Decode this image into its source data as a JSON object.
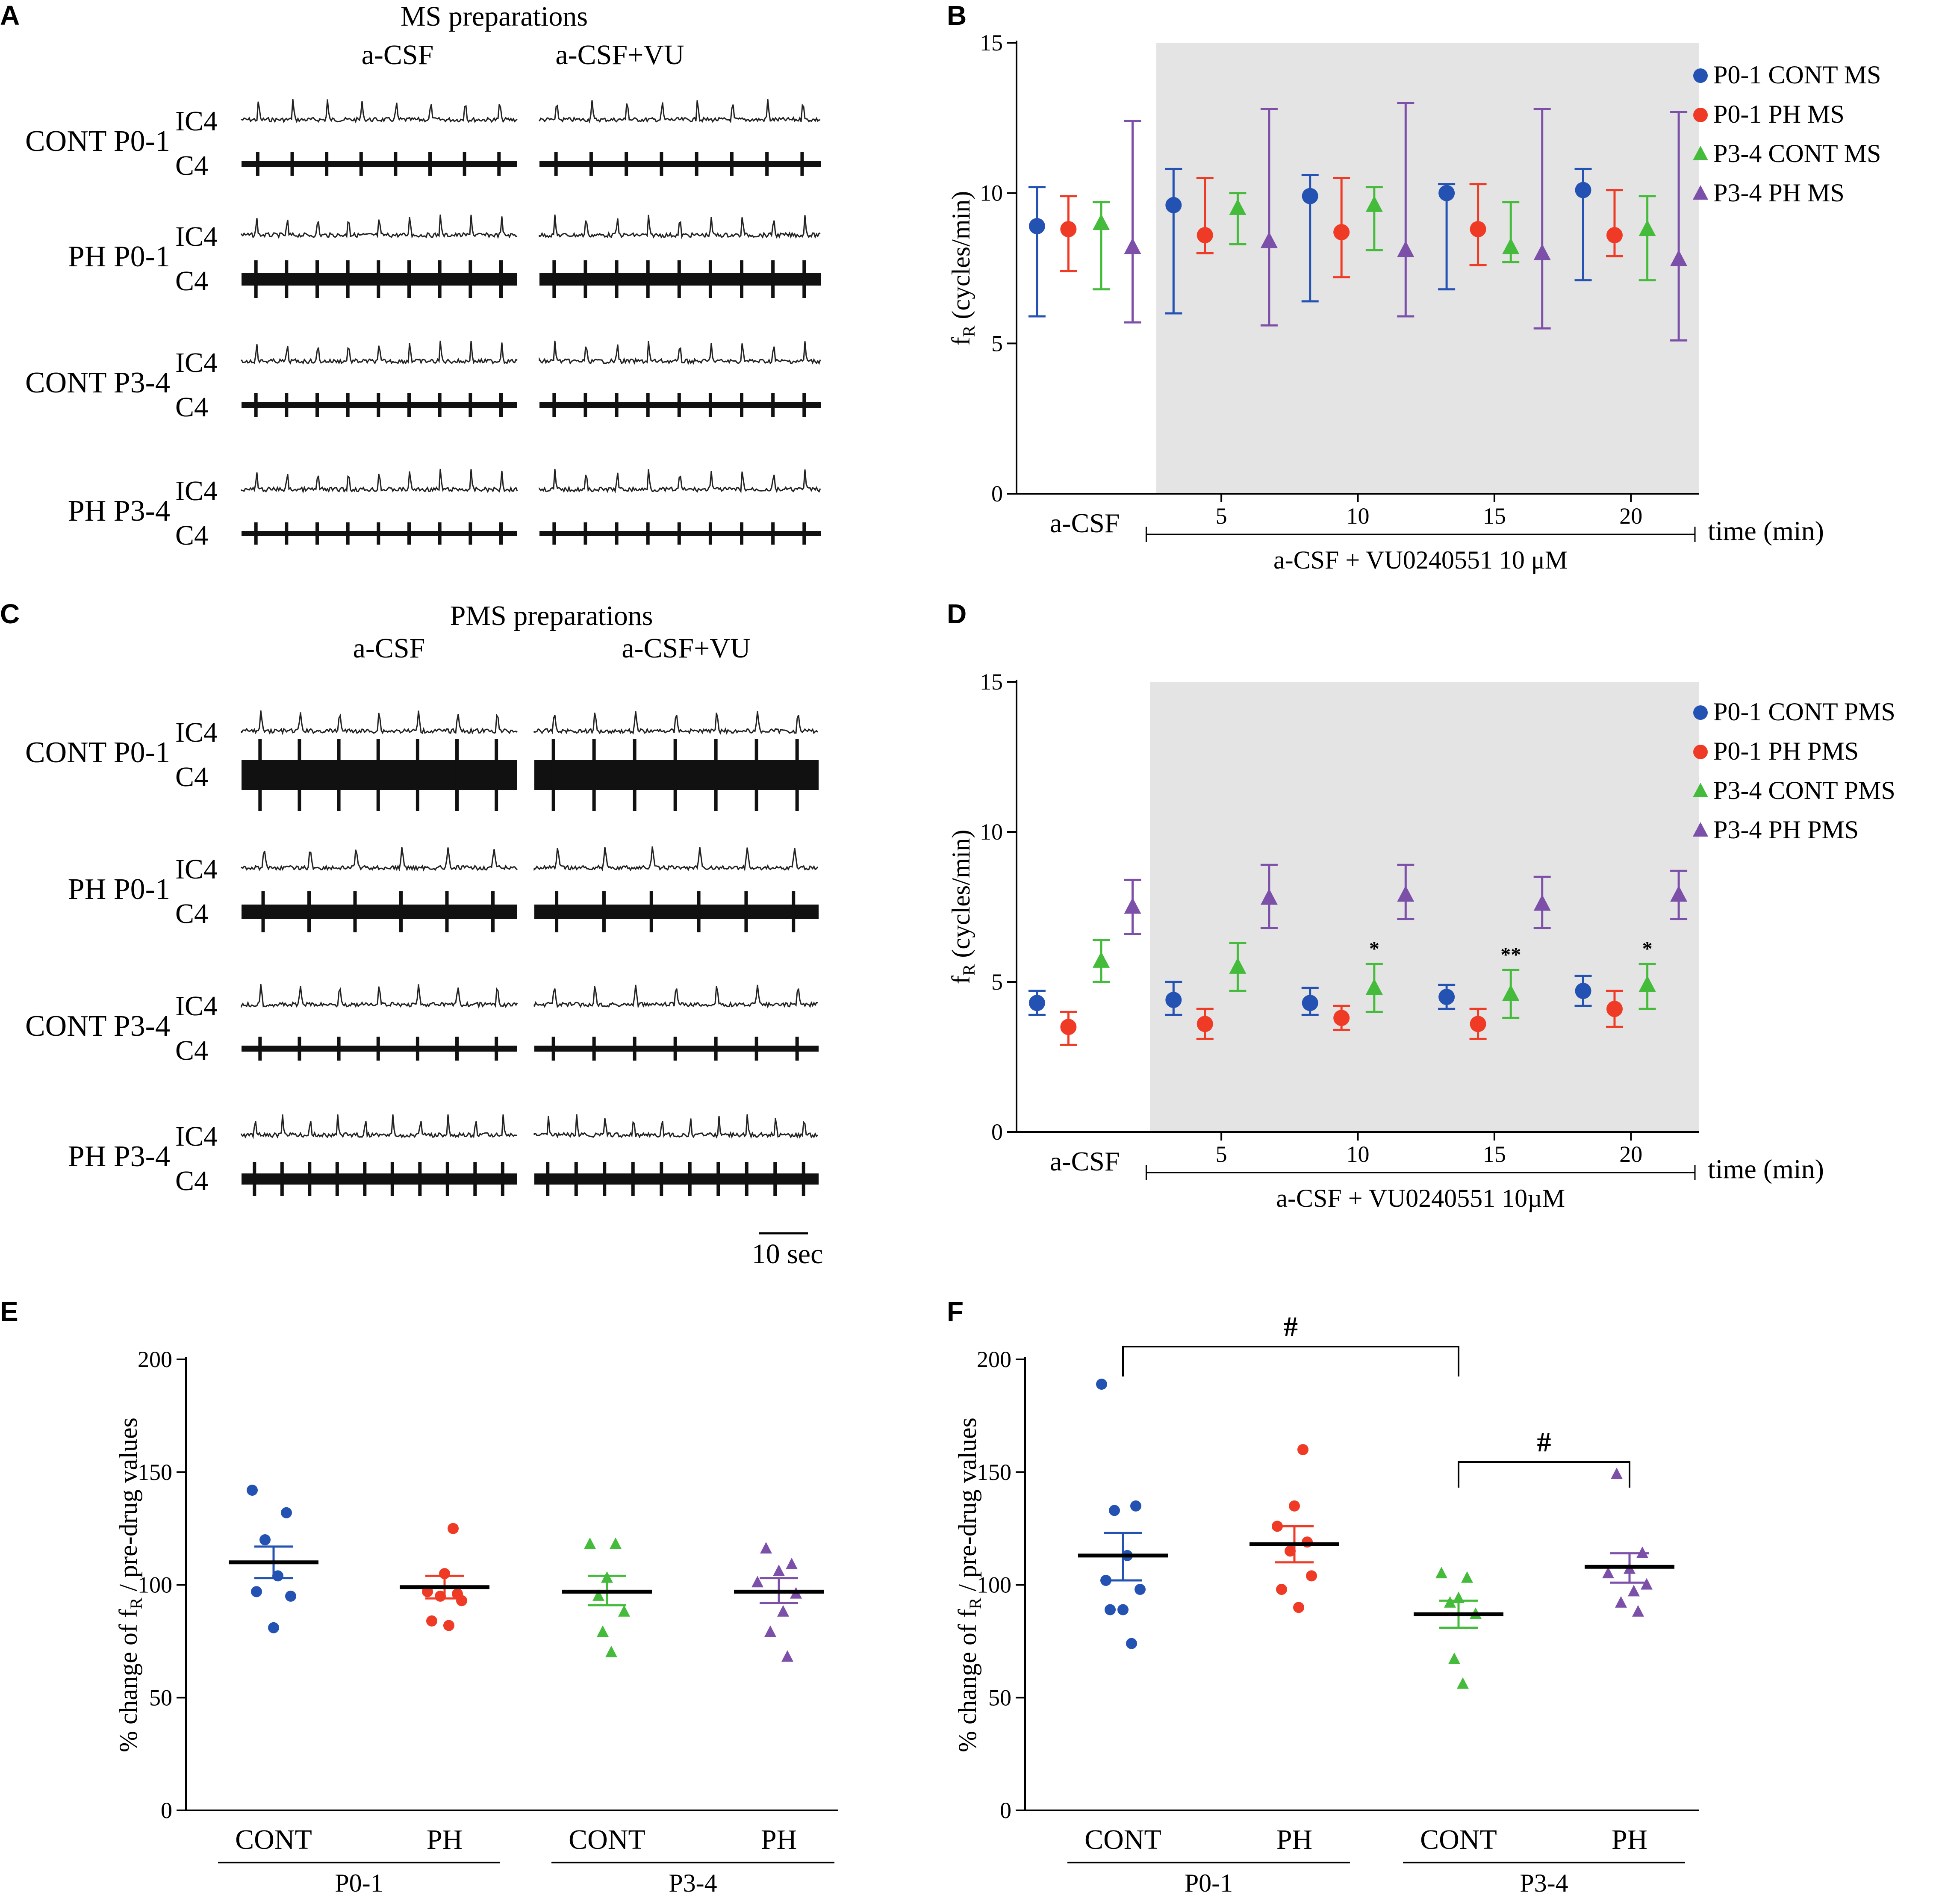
{
  "colors": {
    "blue": "#2352b3",
    "red": "#ef3b26",
    "green": "#44bb3a",
    "purple": "#7c4fa8",
    "shade": "#e4e4e4"
  },
  "panel_letters": [
    "A",
    "B",
    "C",
    "D",
    "E",
    "F"
  ],
  "panel_a": {
    "title": "MS preparations",
    "col_labels": [
      "a-CSF",
      "a-CSF+VU"
    ],
    "rows": [
      {
        "group": "CONT P0-1",
        "color": "#2352b3",
        "trace1": "IC4",
        "trace2": "C4"
      },
      {
        "group": "PH P0-1",
        "color": "#ef3b26",
        "trace1": "IC4",
        "trace2": "C4"
      },
      {
        "group": "CONT P3-4",
        "color": "#44bb3a",
        "trace1": "IC4",
        "trace2": "C4"
      },
      {
        "group": "PH P3-4",
        "color": "#7c4fa8",
        "trace1": "IC4",
        "trace2": "C4"
      }
    ]
  },
  "panel_c": {
    "title": "PMS preparations",
    "col_labels": [
      "a-CSF",
      "a-CSF+VU"
    ],
    "rows": [
      {
        "group": "CONT P0-1",
        "color": "#2352b3",
        "trace1": "IC4",
        "trace2": "C4"
      },
      {
        "group": "PH P0-1",
        "color": "#ef3b26",
        "trace1": "IC4",
        "trace2": "C4"
      },
      {
        "group": "CONT P3-4",
        "color": "#44bb3a",
        "trace1": "IC4",
        "trace2": "C4"
      },
      {
        "group": "PH P3-4",
        "color": "#7c4fa8",
        "trace1": "IC4",
        "trace2": "C4"
      }
    ],
    "scale_bar": "10 sec"
  },
  "chart_data": [
    {
      "panel": "B",
      "type": "scatter",
      "ylabel": "fR (cycles/min)",
      "ylabel_main": "f",
      "ylabel_sub": "R",
      "ylabel_rest": " (cycles/min)",
      "ylim": [
        0,
        15
      ],
      "yticks": [
        "0",
        "5",
        "10",
        "15"
      ],
      "x_categories": [
        "a-CSF",
        "5",
        "10",
        "15",
        "20"
      ],
      "x_unit": "time (min)",
      "bracket_label": "a-CSF + VU0240551 10 μM",
      "shaded_region": "drug application (5–20 min)",
      "legend": [
        "P0-1 CONT MS",
        "P0-1 PH MS",
        "P3-4 CONT MS",
        "P3-4 PH MS"
      ],
      "series": [
        {
          "name": "P0-1 CONT MS",
          "marker": "circle",
          "color": "#2352b3",
          "means": [
            8.9,
            9.6,
            9.9,
            10.0,
            10.1
          ],
          "lower": [
            5.9,
            6.0,
            6.4,
            6.8,
            7.1
          ],
          "upper": [
            10.2,
            10.8,
            10.6,
            10.3,
            10.8
          ]
        },
        {
          "name": "P0-1 PH MS",
          "marker": "circle",
          "color": "#ef3b26",
          "means": [
            8.8,
            8.6,
            8.7,
            8.8,
            8.6
          ],
          "lower": [
            7.4,
            8.0,
            7.2,
            7.6,
            7.9
          ],
          "upper": [
            9.9,
            10.5,
            10.5,
            10.3,
            10.1
          ]
        },
        {
          "name": "P3-4 CONT MS",
          "marker": "triangle",
          "color": "#44bb3a",
          "means": [
            9.0,
            9.5,
            9.6,
            8.2,
            8.8
          ],
          "lower": [
            6.8,
            8.3,
            8.1,
            7.7,
            7.1
          ],
          "upper": [
            9.7,
            10.0,
            10.2,
            9.7,
            9.9
          ]
        },
        {
          "name": "P3-4 PH MS",
          "marker": "triangle",
          "color": "#7c4fa8",
          "means": [
            8.2,
            8.4,
            8.1,
            8.0,
            7.8
          ],
          "lower": [
            5.7,
            5.6,
            5.9,
            5.5,
            5.1
          ],
          "upper": [
            12.4,
            12.8,
            13.0,
            12.8,
            12.7
          ]
        }
      ]
    },
    {
      "panel": "D",
      "type": "scatter",
      "ylabel": "fR (cycles/min)",
      "ylabel_main": "f",
      "ylabel_sub": "R",
      "ylabel_rest": " (cycles/min)",
      "ylim": [
        0,
        15
      ],
      "yticks": [
        "0",
        "5",
        "10",
        "15"
      ],
      "x_categories": [
        "a-CSF",
        "5",
        "10",
        "15",
        "20"
      ],
      "x_unit": "time (min)",
      "bracket_label": "a-CSF + VU0240551 10µM",
      "shaded_region": "drug application (5–20 min)",
      "legend": [
        "P0-1 CONT PMS",
        "P0-1 PH PMS",
        "P3-4 CONT PMS",
        "P3-4 PH PMS"
      ],
      "annotations": [
        {
          "series": "P3-4 CONT PMS",
          "index": 2,
          "text": "*"
        },
        {
          "series": "P3-4 CONT PMS",
          "index": 3,
          "text": "**"
        },
        {
          "series": "P3-4 CONT PMS",
          "index": 4,
          "text": "*"
        }
      ],
      "series": [
        {
          "name": "P0-1 CONT PMS",
          "marker": "circle",
          "color": "#2352b3",
          "means": [
            4.3,
            4.4,
            4.3,
            4.5,
            4.7
          ],
          "lower": [
            3.9,
            3.9,
            3.9,
            4.1,
            4.2
          ],
          "upper": [
            4.7,
            5.0,
            4.8,
            4.9,
            5.2
          ]
        },
        {
          "name": "P0-1 PH PMS",
          "marker": "circle",
          "color": "#ef3b26",
          "means": [
            3.5,
            3.6,
            3.8,
            3.6,
            4.1
          ],
          "lower": [
            2.9,
            3.1,
            3.4,
            3.1,
            3.5
          ],
          "upper": [
            4.0,
            4.1,
            4.2,
            4.1,
            4.7
          ]
        },
        {
          "name": "P3-4 CONT PMS",
          "marker": "triangle",
          "color": "#44bb3a",
          "means": [
            5.7,
            5.5,
            4.8,
            4.6,
            4.9
          ],
          "lower": [
            5.0,
            4.7,
            4.0,
            3.8,
            4.1
          ],
          "upper": [
            6.4,
            6.3,
            5.6,
            5.4,
            5.6
          ]
        },
        {
          "name": "P3-4 PH PMS",
          "marker": "triangle",
          "color": "#7c4fa8",
          "means": [
            7.5,
            7.8,
            7.9,
            7.6,
            7.9
          ],
          "lower": [
            6.6,
            6.8,
            7.1,
            6.8,
            7.1
          ],
          "upper": [
            8.4,
            8.9,
            8.9,
            8.5,
            8.7
          ]
        }
      ]
    },
    {
      "panel": "E",
      "type": "scatter",
      "ylabel": "% change of fR / pre-drug values",
      "ylabel_main": "% change of f",
      "ylabel_sub": "R",
      "ylabel_rest": " / pre-drug values",
      "ylim": [
        0,
        200
      ],
      "yticks": [
        "0",
        "50",
        "100",
        "150",
        "200"
      ],
      "categories": [
        "CONT",
        "PH",
        "CONT",
        "PH"
      ],
      "groups": [
        {
          "label": "P0-1",
          "span": [
            0,
            1
          ]
        },
        {
          "label": "P3-4",
          "span": [
            2,
            3
          ]
        }
      ],
      "series": [
        {
          "name": "P0-1 CONT",
          "marker": "circle",
          "color": "#2352b3",
          "mean": 110,
          "sem_low": 103,
          "sem_high": 117,
          "points": [
            142,
            132,
            120,
            104,
            97,
            95,
            81
          ]
        },
        {
          "name": "P0-1 PH",
          "marker": "circle",
          "color": "#ef3b26",
          "mean": 99,
          "sem_low": 94,
          "sem_high": 104,
          "points": [
            125,
            105,
            97,
            96,
            95,
            93,
            84,
            82
          ]
        },
        {
          "name": "P3-4 CONT",
          "marker": "triangle",
          "color": "#44bb3a",
          "mean": 97,
          "sem_low": 91,
          "sem_high": 104,
          "points": [
            118,
            118,
            103,
            95,
            88,
            79,
            70
          ]
        },
        {
          "name": "P3-4 PH",
          "marker": "triangle",
          "color": "#7c4fa8",
          "mean": 97,
          "sem_low": 92,
          "sem_high": 103,
          "points": [
            116,
            109,
            106,
            101,
            96,
            88,
            79,
            68
          ]
        }
      ]
    },
    {
      "panel": "F",
      "type": "scatter",
      "ylabel": "% change of fR / pre-drug values",
      "ylabel_main": "% change of f",
      "ylabel_sub": "R",
      "ylabel_rest": " / pre-drug values",
      "ylim": [
        0,
        200
      ],
      "yticks": [
        "0",
        "50",
        "100",
        "150",
        "200"
      ],
      "categories": [
        "CONT",
        "PH",
        "CONT",
        "PH"
      ],
      "groups": [
        {
          "label": "P0-1",
          "span": [
            0,
            1
          ]
        },
        {
          "label": "P3-4",
          "span": [
            2,
            3
          ]
        }
      ],
      "significance": [
        {
          "from": 0,
          "to": 2,
          "label": "#"
        },
        {
          "from": 2,
          "to": 3,
          "label": "#"
        }
      ],
      "series": [
        {
          "name": "P0-1 CONT",
          "marker": "circle",
          "color": "#2352b3",
          "mean": 113,
          "sem_low": 102,
          "sem_high": 123,
          "points": [
            189,
            135,
            133,
            113,
            102,
            98,
            89,
            89,
            74
          ]
        },
        {
          "name": "P0-1 PH",
          "marker": "circle",
          "color": "#ef3b26",
          "mean": 118,
          "sem_low": 110,
          "sem_high": 126,
          "points": [
            160,
            135,
            126,
            119,
            115,
            104,
            98,
            90
          ]
        },
        {
          "name": "P3-4 CONT",
          "marker": "triangle",
          "color": "#44bb3a",
          "mean": 87,
          "sem_low": 81,
          "sem_high": 93,
          "points": [
            105,
            103,
            94,
            92,
            87,
            67,
            56
          ]
        },
        {
          "name": "P3-4 PH",
          "marker": "triangle",
          "color": "#7c4fa8",
          "mean": 108,
          "sem_low": 101,
          "sem_high": 114,
          "points": [
            149,
            114,
            107,
            105,
            100,
            97,
            92,
            88
          ]
        }
      ]
    }
  ]
}
